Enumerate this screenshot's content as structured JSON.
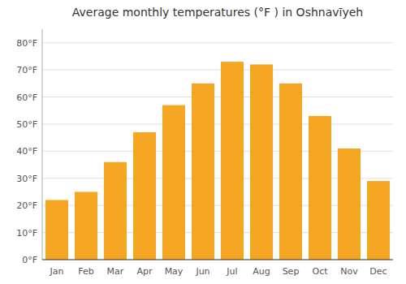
{
  "chart_data": {
    "type": "bar",
    "title": "Average monthly temperatures (°F ) in Oshnavīyeh",
    "categories": [
      "Jan",
      "Feb",
      "Mar",
      "Apr",
      "May",
      "Jun",
      "Jul",
      "Aug",
      "Sep",
      "Oct",
      "Nov",
      "Dec"
    ],
    "values": [
      22,
      25,
      36,
      47,
      57,
      65,
      73,
      72,
      65,
      53,
      41,
      29
    ],
    "color": "#F5A623",
    "ylim": [
      0,
      85
    ],
    "yticks": [
      {
        "value": 0,
        "label": "0°F"
      },
      {
        "value": 10,
        "label": "10°F"
      },
      {
        "value": 20,
        "label": "20°F"
      },
      {
        "value": 30,
        "label": "30°F"
      },
      {
        "value": 40,
        "label": "40°F"
      },
      {
        "value": 50,
        "label": "50°F"
      },
      {
        "value": 60,
        "label": "60°F"
      },
      {
        "value": 70,
        "label": "70°F"
      },
      {
        "value": 80,
        "label": "80°F"
      }
    ],
    "grid": true
  }
}
